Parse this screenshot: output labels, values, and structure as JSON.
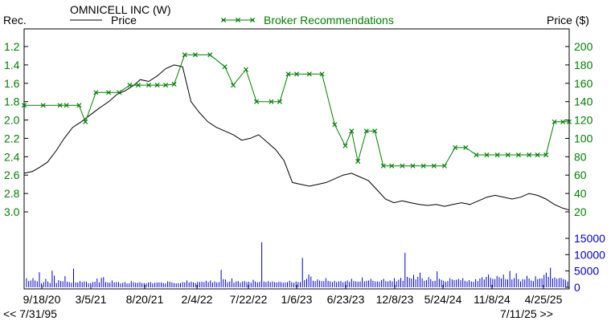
{
  "chart_data": [
    {
      "type": "line",
      "title": "OMNICELL INC (W)",
      "left_axis_label": "Rec.",
      "right_axis_label": "Price ($)",
      "left_ticks": [
        "1.2",
        "1.4",
        "1.6",
        "1.8",
        "2.0",
        "2.2",
        "2.4",
        "2.6",
        "2.8",
        "3.0"
      ],
      "right_ticks": [
        "20",
        "40",
        "60",
        "80",
        "100",
        "120",
        "140",
        "160",
        "180",
        "200"
      ],
      "left_range": [
        1.2,
        3.0
      ],
      "right_range": [
        20,
        200
      ],
      "x_ticks": [
        "9/18/20",
        "3/5/21",
        "8/20/21",
        "2/4/22",
        "7/22/22",
        "1/6/23",
        "6/23/23",
        "12/8/23",
        "5/24/24",
        "11/8/24",
        "4/25/25"
      ],
      "x_range": [
        "2020-07-31",
        "2025-07-11"
      ],
      "series": [
        {
          "name": "Price",
          "axis": "right",
          "color": "#000000",
          "x": [
            "2020-07-31",
            "2020-08-28",
            "2020-09-18",
            "2020-10-16",
            "2020-11-13",
            "2020-12-11",
            "2021-01-08",
            "2021-02-05",
            "2021-03-05",
            "2021-04-02",
            "2021-05-07",
            "2021-06-04",
            "2021-07-02",
            "2021-07-30",
            "2021-08-20",
            "2021-09-17",
            "2021-10-15",
            "2021-11-12",
            "2021-12-10",
            "2022-01-07",
            "2022-02-04",
            "2022-03-04",
            "2022-04-01",
            "2022-04-29",
            "2022-05-27",
            "2022-06-24",
            "2022-07-22",
            "2022-08-19",
            "2022-09-16",
            "2022-10-14",
            "2022-11-11",
            "2022-12-09",
            "2023-01-06",
            "2023-02-03",
            "2023-03-03",
            "2023-03-31",
            "2023-04-28",
            "2023-05-26",
            "2023-06-23",
            "2023-07-21",
            "2023-08-18",
            "2023-09-15",
            "2023-10-13",
            "2023-11-10",
            "2023-12-08",
            "2024-01-05",
            "2024-02-02",
            "2024-03-01",
            "2024-03-29",
            "2024-04-26",
            "2024-05-24",
            "2024-06-21",
            "2024-07-19",
            "2024-08-16",
            "2024-09-13",
            "2024-10-11",
            "2024-11-08",
            "2024-12-06",
            "2025-01-03",
            "2025-01-31",
            "2025-02-28",
            "2025-03-28",
            "2025-04-25",
            "2025-05-23",
            "2025-06-20",
            "2025-07-11"
          ],
          "values": [
            62,
            64,
            68,
            74,
            86,
            100,
            112,
            118,
            125,
            132,
            140,
            148,
            152,
            158,
            164,
            162,
            168,
            176,
            180,
            178,
            140,
            128,
            118,
            112,
            108,
            104,
            98,
            100,
            104,
            96,
            88,
            76,
            52,
            50,
            48,
            50,
            52,
            56,
            60,
            62,
            58,
            54,
            44,
            34,
            30,
            32,
            30,
            28,
            27,
            28,
            26,
            28,
            30,
            28,
            32,
            36,
            38,
            36,
            34,
            36,
            40,
            38,
            34,
            28,
            24,
            22
          ]
        },
        {
          "name": "Broker Recommendations",
          "axis": "left",
          "color": "#008000",
          "x": [
            "2020-07-31",
            "2020-10-02",
            "2020-11-27",
            "2020-12-18",
            "2021-01-29",
            "2021-02-19",
            "2021-03-26",
            "2021-05-07",
            "2021-06-11",
            "2021-07-16",
            "2021-08-13",
            "2021-09-17",
            "2021-10-15",
            "2021-11-12",
            "2021-12-10",
            "2022-01-14",
            "2022-02-18",
            "2022-04-08",
            "2022-05-27",
            "2022-06-24",
            "2022-08-05",
            "2022-09-09",
            "2022-10-28",
            "2022-11-25",
            "2022-12-23",
            "2023-01-20",
            "2023-03-03",
            "2023-04-14",
            "2023-05-26",
            "2023-06-30",
            "2023-07-21",
            "2023-08-11",
            "2023-09-08",
            "2023-10-06",
            "2023-11-03",
            "2023-12-01",
            "2024-01-05",
            "2024-02-09",
            "2024-03-15",
            "2024-04-19",
            "2024-05-24",
            "2024-06-28",
            "2024-08-02",
            "2024-09-06",
            "2024-10-11",
            "2024-11-15",
            "2024-12-20",
            "2025-01-24",
            "2025-02-28",
            "2025-03-28",
            "2025-04-25",
            "2025-05-23",
            "2025-06-20",
            "2025-07-11"
          ],
          "values": [
            1.84,
            1.84,
            1.84,
            1.84,
            1.84,
            2.02,
            1.7,
            1.7,
            1.7,
            1.62,
            1.62,
            1.62,
            1.62,
            1.62,
            1.61,
            1.29,
            1.29,
            1.29,
            1.42,
            1.62,
            1.45,
            1.8,
            1.8,
            1.8,
            1.5,
            1.5,
            1.5,
            1.5,
            2.05,
            2.28,
            2.12,
            2.45,
            2.12,
            2.12,
            2.5,
            2.5,
            2.5,
            2.5,
            2.5,
            2.5,
            2.5,
            2.3,
            2.3,
            2.38,
            2.38,
            2.38,
            2.38,
            2.38,
            2.38,
            2.38,
            2.38,
            2.02,
            2.02,
            2.02
          ]
        }
      ]
    },
    {
      "type": "bar",
      "title": "",
      "ylabel": "",
      "y_ticks": [
        "0",
        "5000",
        "10000",
        "15000"
      ],
      "ylim": [
        0,
        15000
      ],
      "color": "#0000cc",
      "values": [
        2800,
        1900,
        2100,
        2800,
        2100,
        1800,
        4600,
        1200,
        1600,
        2600,
        1800,
        1300,
        5100,
        3600,
        1300,
        2200,
        1900,
        1800,
        3400,
        1700,
        1600,
        1400,
        5700,
        1500,
        1500,
        1900,
        1600,
        1800,
        1700,
        1200,
        1300,
        1600,
        1700,
        2700,
        1500,
        2900,
        3100,
        1600,
        1500,
        1400,
        2100,
        1500,
        1600,
        1600,
        1200,
        1400,
        1600,
        1200,
        1200,
        1900,
        1600,
        1400,
        1400,
        1600,
        1300,
        1300,
        1200,
        1500,
        1600,
        1200,
        1400,
        1500,
        1500,
        1500,
        1300,
        1200,
        1800,
        1700,
        1500,
        1300,
        1200,
        1300,
        1300,
        1600,
        1500,
        2100,
        1500,
        1700,
        1500,
        1300,
        1700,
        1600,
        1700,
        1600,
        2000,
        1600,
        2100,
        1500,
        1800,
        1500,
        1600,
        5300,
        2500,
        2400,
        1600,
        1800,
        2700,
        1400,
        1800,
        1900,
        1400,
        1800,
        1900,
        1600,
        1700,
        1400,
        2300,
        1800,
        1500,
        1700,
        13800,
        1800,
        1600,
        1900,
        1600,
        1800,
        1600,
        1500,
        1700,
        1600,
        1400,
        1500,
        1600,
        2000,
        1600,
        1400,
        1800,
        1600,
        1600,
        9000,
        2200,
        2600,
        3900,
        3300,
        2000,
        1900,
        2400,
        2100,
        1900,
        1900,
        2800,
        2000,
        1800,
        1600,
        2000,
        1600,
        1800,
        1900,
        1500,
        1800,
        2100,
        1700,
        2600,
        1900,
        1800,
        1700,
        1800,
        3000,
        1800,
        2000,
        2100,
        2600,
        2000,
        1800,
        1800,
        1700,
        2200,
        2600,
        1900,
        1800,
        2100,
        1800,
        2800,
        1800,
        2300,
        2900,
        2000,
        10600,
        3200,
        2900,
        2700,
        3800,
        2400,
        3200,
        4500,
        2800,
        2000,
        2200,
        3100,
        2500,
        1900,
        2000,
        4900,
        2600,
        2300,
        2000,
        1700,
        1900,
        2800,
        2400,
        2200,
        2300,
        2600,
        2200,
        2800,
        2000,
        1800,
        2200,
        1800,
        1700,
        2500,
        1900,
        2700,
        3100,
        2400,
        3200,
        3900,
        2900,
        2600,
        2500,
        3500,
        3100,
        2700,
        3900,
        2500,
        2400,
        5000,
        2400,
        2800,
        4300,
        2500,
        1800,
        2500,
        2400,
        3500,
        2700,
        2100,
        1900,
        3400,
        2500,
        2700,
        2700,
        3800,
        4500,
        3200,
        6000,
        2700,
        3000,
        2600,
        2800,
        2900,
        2500,
        2300,
        1800
      ]
    }
  ],
  "footer": {
    "start_date": "<< 7/31/95",
    "end_date": "7/11/25 >>"
  }
}
